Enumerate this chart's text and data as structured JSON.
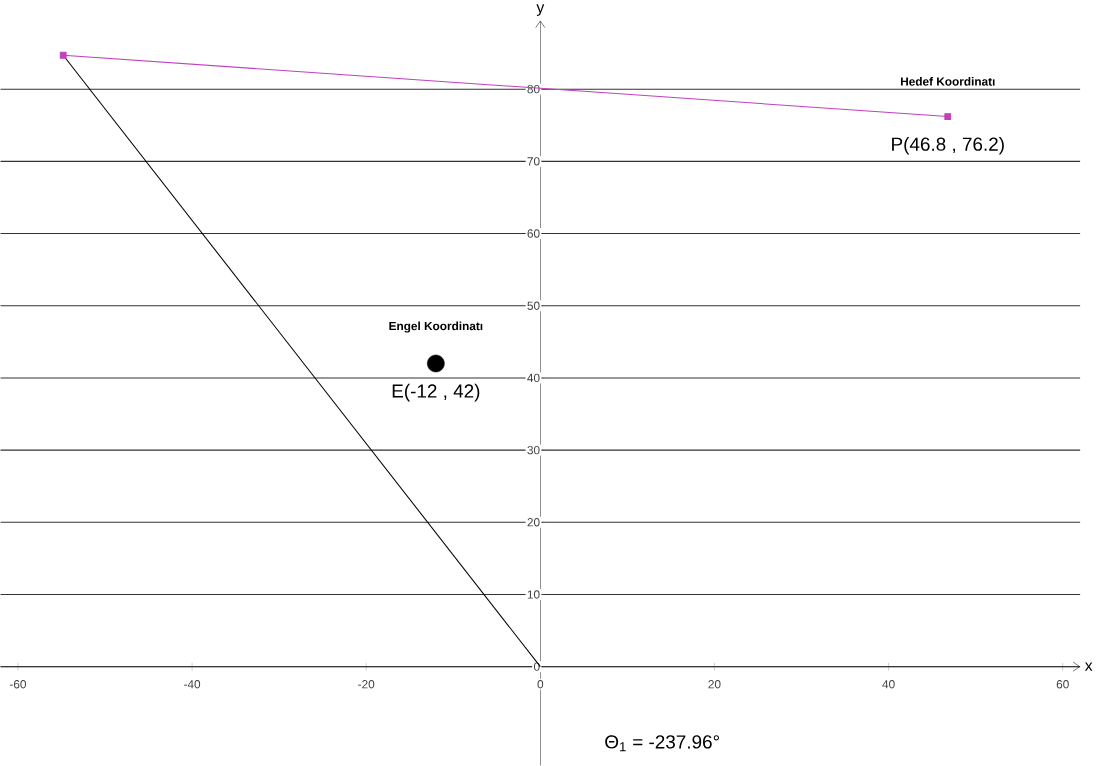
{
  "chart_data": {
    "type": "line",
    "xlabel": "x",
    "ylabel": "y",
    "xlim": [
      -62,
      62
    ],
    "ylim": [
      -13.7,
      89.5
    ],
    "xticks": [
      -60,
      -40,
      -20,
      0,
      20,
      40,
      60
    ],
    "yticks": [
      0,
      10,
      20,
      30,
      40,
      50,
      60,
      70,
      80
    ],
    "grid": "y",
    "series": [
      {
        "color": "#000000",
        "x": [
          0,
          -54.8
        ],
        "values": [
          0,
          84.7
        ]
      },
      {
        "color": "#c040c0",
        "x": [
          -54.8,
          46.8
        ],
        "values": [
          84.7,
          76.2
        ],
        "marker": "square"
      },
      {
        "type": "scatter",
        "color": "#000000",
        "x": [
          -12
        ],
        "values": [
          42
        ],
        "marker": "circle"
      }
    ],
    "annotations": [
      "Hedef Koordinatı",
      "P(46.8 , 76.2)",
      "Engel Koordinatı",
      "E(-12 , 42)",
      "Θ$_{1}$ = -237.96°"
    ]
  }
}
